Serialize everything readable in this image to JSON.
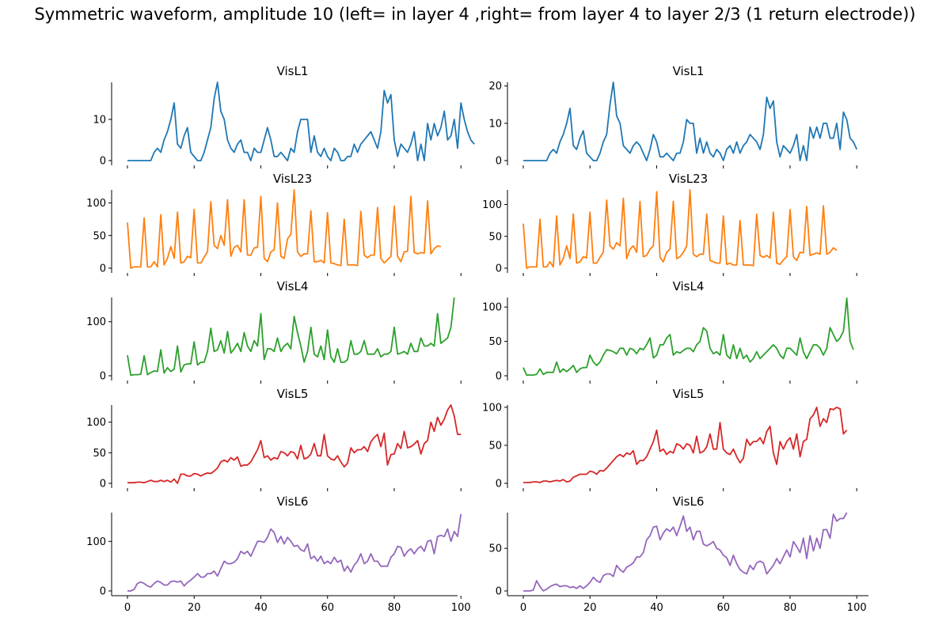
{
  "figure": {
    "suptitle": "Symmetric waveform, amplitude 10 (left= in layer 4 ,right= from layer 4 to layer 2/3 (1 return electrode))"
  },
  "chart_data": [
    {
      "type": "line",
      "title": "VisL1",
      "column": "left",
      "color": "#1f77b4",
      "xlim": [
        0,
        99
      ],
      "ylim": [
        0,
        19
      ],
      "yticks": [
        0,
        10
      ],
      "y": [
        0,
        0,
        0,
        0,
        0,
        0,
        0,
        0,
        2,
        3,
        2,
        5,
        7,
        10,
        14,
        4,
        3,
        6,
        8,
        2,
        1,
        0,
        0,
        2,
        5,
        8,
        15,
        19,
        12,
        10,
        5,
        3,
        2,
        4,
        5,
        2,
        2,
        0,
        3,
        2,
        2,
        5,
        8,
        5,
        1,
        1,
        2,
        1,
        0,
        3,
        2,
        7,
        10,
        10,
        10,
        2,
        6,
        2,
        1,
        3,
        1,
        0,
        3,
        2,
        0,
        0,
        1,
        1,
        4,
        2,
        4,
        5,
        6,
        7,
        5,
        3,
        7,
        17,
        14,
        16,
        5,
        1,
        4,
        3,
        2,
        4,
        7,
        0,
        4,
        0,
        9,
        5,
        9,
        6,
        8,
        12,
        5,
        6,
        10,
        3,
        14,
        10,
        7,
        5,
        4
      ]
    },
    {
      "type": "line",
      "title": "VisL1",
      "column": "right",
      "color": "#1f77b4",
      "xlim": [
        0,
        99
      ],
      "ylim": [
        0,
        21
      ],
      "yticks": [
        0,
        10,
        20
      ],
      "y": [
        0,
        0,
        0,
        0,
        0,
        0,
        0,
        0,
        2,
        3,
        2,
        5,
        7,
        10,
        14,
        4,
        3,
        6,
        8,
        2,
        1,
        0,
        0,
        2,
        5,
        7,
        15,
        21,
        12,
        10,
        4,
        3,
        2,
        4,
        5,
        4,
        2,
        0,
        3,
        7,
        5,
        1,
        1,
        2,
        1,
        0,
        2,
        2,
        5,
        11,
        10,
        10,
        2,
        6,
        2,
        5,
        2,
        1,
        3,
        2,
        0,
        3,
        4,
        2,
        5,
        2,
        4,
        5,
        7,
        6,
        5,
        3,
        7,
        17,
        14,
        16,
        5,
        1,
        4,
        3,
        2,
        4,
        7,
        0,
        4,
        0,
        9,
        6,
        9,
        6,
        10,
        10,
        6,
        6,
        10,
        3,
        13,
        11,
        6,
        5,
        3
      ]
    },
    {
      "type": "line",
      "title": "VisL23",
      "column": "left",
      "color": "#ff7f0e",
      "xlim": [
        0,
        99
      ],
      "ylim": [
        0,
        120
      ],
      "yticks": [
        0,
        50,
        100
      ],
      "y": [
        70,
        0,
        2,
        2,
        2,
        77,
        2,
        2,
        10,
        2,
        82,
        5,
        15,
        33,
        15,
        86,
        8,
        10,
        18,
        16,
        90,
        8,
        8,
        17,
        25,
        102,
        35,
        30,
        50,
        35,
        105,
        18,
        32,
        35,
        25,
        105,
        20,
        20,
        31,
        32,
        110,
        15,
        10,
        25,
        28,
        100,
        18,
        15,
        45,
        52,
        120,
        25,
        18,
        22,
        22,
        88,
        10,
        10,
        12,
        8,
        85,
        8,
        7,
        5,
        4,
        75,
        5,
        5,
        5,
        4,
        87,
        20,
        16,
        20,
        20,
        93,
        15,
        8,
        13,
        18,
        95,
        18,
        10,
        25,
        26,
        110,
        24,
        22,
        24,
        23,
        103,
        22,
        30,
        34,
        33
      ]
    },
    {
      "type": "line",
      "title": "VisL23",
      "column": "right",
      "color": "#ff7f0e",
      "xlim": [
        0,
        99
      ],
      "ylim": [
        0,
        123
      ],
      "yticks": [
        0,
        50,
        100
      ],
      "y": [
        70,
        0,
        2,
        2,
        2,
        77,
        2,
        2,
        10,
        2,
        82,
        5,
        15,
        35,
        15,
        85,
        8,
        10,
        18,
        16,
        88,
        8,
        8,
        17,
        25,
        107,
        35,
        30,
        40,
        35,
        110,
        15,
        30,
        35,
        25,
        105,
        18,
        20,
        30,
        35,
        120,
        17,
        10,
        25,
        30,
        105,
        15,
        18,
        25,
        35,
        123,
        22,
        18,
        22,
        22,
        85,
        12,
        10,
        8,
        8,
        82,
        6,
        8,
        5,
        5,
        75,
        5,
        5,
        5,
        4,
        85,
        20,
        17,
        20,
        16,
        88,
        8,
        6,
        13,
        18,
        92,
        18,
        12,
        25,
        24,
        97,
        20,
        22,
        24,
        22,
        98,
        22,
        25,
        32,
        28
      ]
    },
    {
      "type": "line",
      "title": "VisL4",
      "column": "left",
      "color": "#2ca02c",
      "xlim": [
        0,
        99
      ],
      "ylim": [
        0,
        145
      ],
      "yticks": [
        0,
        100
      ],
      "y": [
        38,
        1,
        2,
        2,
        3,
        37,
        2,
        6,
        9,
        8,
        48,
        5,
        15,
        8,
        12,
        55,
        7,
        20,
        22,
        22,
        63,
        20,
        25,
        25,
        45,
        88,
        45,
        48,
        65,
        42,
        82,
        42,
        50,
        60,
        45,
        80,
        55,
        45,
        65,
        55,
        115,
        30,
        50,
        50,
        45,
        70,
        45,
        55,
        60,
        50,
        110,
        80,
        55,
        25,
        45,
        90,
        40,
        35,
        55,
        30,
        85,
        35,
        25,
        50,
        25,
        25,
        30,
        65,
        40,
        40,
        45,
        65,
        40,
        40,
        40,
        50,
        35,
        40,
        40,
        45,
        90,
        40,
        42,
        45,
        40,
        60,
        45,
        45,
        70,
        55,
        55,
        60,
        55,
        115,
        60,
        65,
        70,
        90,
        145
      ]
    },
    {
      "type": "line",
      "title": "VisL4",
      "column": "right",
      "color": "#2ca02c",
      "xlim": [
        0,
        99
      ],
      "ylim": [
        0,
        114
      ],
      "yticks": [
        0,
        50,
        100
      ],
      "y": [
        12,
        1,
        1,
        1,
        2,
        10,
        2,
        5,
        5,
        5,
        20,
        5,
        10,
        6,
        10,
        15,
        5,
        10,
        12,
        12,
        30,
        20,
        15,
        20,
        30,
        38,
        37,
        35,
        32,
        40,
        40,
        30,
        40,
        38,
        32,
        40,
        38,
        45,
        55,
        26,
        30,
        45,
        45,
        55,
        60,
        30,
        35,
        33,
        37,
        40,
        40,
        35,
        45,
        50,
        70,
        65,
        40,
        32,
        35,
        30,
        60,
        30,
        25,
        45,
        25,
        40,
        25,
        30,
        20,
        25,
        35,
        25,
        30,
        35,
        40,
        45,
        40,
        30,
        25,
        40,
        40,
        35,
        30,
        55,
        35,
        25,
        35,
        45,
        45,
        40,
        30,
        40,
        70,
        60,
        50,
        55,
        65,
        113,
        50,
        38
      ]
    },
    {
      "type": "line",
      "title": "VisL5",
      "column": "left",
      "color": "#d62728",
      "xlim": [
        0,
        99
      ],
      "ylim": [
        0,
        128
      ],
      "yticks": [
        0,
        50,
        100
      ],
      "y": [
        1,
        1,
        1,
        2,
        2,
        1,
        3,
        5,
        3,
        3,
        5,
        3,
        5,
        2,
        7,
        0,
        15,
        15,
        12,
        12,
        16,
        15,
        12,
        15,
        17,
        16,
        20,
        25,
        35,
        38,
        35,
        42,
        38,
        43,
        28,
        30,
        30,
        35,
        45,
        55,
        70,
        42,
        45,
        38,
        42,
        40,
        52,
        50,
        45,
        52,
        50,
        40,
        62,
        40,
        42,
        48,
        65,
        45,
        45,
        80,
        45,
        40,
        38,
        45,
        35,
        27,
        33,
        58,
        50,
        55,
        55,
        60,
        52,
        68,
        75,
        80,
        60,
        82,
        30,
        47,
        48,
        65,
        57,
        85,
        58,
        60,
        64,
        70,
        48,
        65,
        70,
        100,
        85,
        108,
        95,
        105,
        120,
        128,
        110,
        80,
        80
      ]
    },
    {
      "type": "line",
      "title": "VisL5",
      "column": "right",
      "color": "#d62728",
      "xlim": [
        0,
        99
      ],
      "ylim": [
        0,
        103
      ],
      "yticks": [
        0,
        50,
        100
      ],
      "y": [
        1,
        1,
        1,
        2,
        2,
        1,
        3,
        3,
        2,
        3,
        4,
        3,
        5,
        2,
        3,
        8,
        10,
        12,
        12,
        12,
        16,
        15,
        12,
        17,
        16,
        20,
        25,
        30,
        35,
        38,
        35,
        40,
        38,
        43,
        25,
        30,
        30,
        35,
        45,
        55,
        70,
        42,
        45,
        38,
        42,
        40,
        52,
        50,
        45,
        52,
        50,
        40,
        62,
        40,
        42,
        48,
        65,
        45,
        45,
        80,
        45,
        40,
        38,
        45,
        35,
        27,
        33,
        58,
        50,
        55,
        55,
        60,
        52,
        68,
        75,
        40,
        25,
        55,
        45,
        55,
        60,
        45,
        65,
        35,
        55,
        58,
        85,
        90,
        100,
        75,
        85,
        80,
        98,
        97,
        100,
        98,
        65,
        70
      ]
    },
    {
      "type": "line",
      "title": "VisL6",
      "column": "left",
      "color": "#9467bd",
      "xlim": [
        0,
        99
      ],
      "ylim": [
        0,
        158
      ],
      "yticks": [
        0,
        100
      ],
      "y": [
        0,
        0,
        3,
        15,
        18,
        15,
        10,
        8,
        15,
        20,
        17,
        12,
        12,
        19,
        20,
        18,
        20,
        10,
        17,
        22,
        28,
        35,
        28,
        28,
        35,
        35,
        40,
        30,
        45,
        60,
        55,
        55,
        58,
        65,
        80,
        75,
        80,
        70,
        85,
        100,
        100,
        98,
        108,
        125,
        118,
        98,
        110,
        95,
        108,
        100,
        90,
        92,
        83,
        80,
        95,
        65,
        70,
        60,
        70,
        55,
        60,
        55,
        68,
        58,
        62,
        40,
        50,
        38,
        52,
        60,
        75,
        55,
        60,
        75,
        60,
        60,
        50,
        50,
        50,
        68,
        75,
        90,
        88,
        70,
        80,
        85,
        75,
        85,
        90,
        80,
        100,
        102,
        75,
        110,
        112,
        110,
        125,
        100,
        120,
        110,
        155
      ]
    },
    {
      "type": "line",
      "title": "VisL6",
      "column": "right",
      "color": "#9467bd",
      "xlim": [
        0,
        99
      ],
      "ylim": [
        0,
        92
      ],
      "yticks": [
        0,
        50
      ],
      "y": [
        0,
        0,
        0,
        1,
        12,
        5,
        0,
        2,
        5,
        7,
        8,
        5,
        6,
        6,
        4,
        5,
        3,
        6,
        3,
        6,
        10,
        16,
        12,
        10,
        18,
        20,
        20,
        17,
        30,
        25,
        22,
        28,
        30,
        33,
        40,
        40,
        45,
        60,
        65,
        75,
        76,
        60,
        68,
        73,
        70,
        75,
        65,
        76,
        88,
        70,
        75,
        60,
        70,
        70,
        55,
        53,
        55,
        58,
        50,
        48,
        42,
        39,
        30,
        42,
        32,
        25,
        22,
        20,
        30,
        25,
        33,
        35,
        33,
        20,
        25,
        30,
        38,
        32,
        40,
        48,
        40,
        58,
        52,
        45,
        62,
        38,
        65,
        47,
        62,
        50,
        72,
        72,
        62,
        90,
        82,
        85,
        85,
        92
      ]
    }
  ]
}
